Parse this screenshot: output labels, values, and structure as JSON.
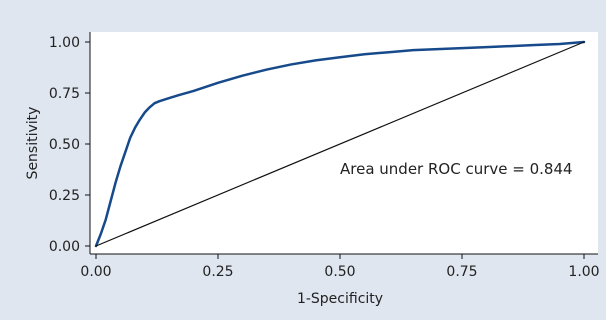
{
  "chart_data": {
    "type": "line",
    "title": "",
    "xlabel": "1-Specificity",
    "ylabel": "Sensitivity",
    "xlim": [
      0,
      1
    ],
    "ylim": [
      0,
      1
    ],
    "x_ticks": [
      0,
      0.25,
      0.5,
      0.75,
      1
    ],
    "y_ticks": [
      0,
      0.25,
      0.5,
      0.75,
      1
    ],
    "x_tick_labels": [
      "0.00",
      "0.25",
      "0.50",
      "0.75",
      "1.00"
    ],
    "y_tick_labels": [
      "0.00",
      "0.25",
      "0.50",
      "0.75",
      "1.00"
    ],
    "grid": false,
    "legend": "none",
    "annotation": "Area under ROC curve = 0.844",
    "series": [
      {
        "color": "#174a8b",
        "x": [
          0,
          0.01,
          0.02,
          0.03,
          0.04,
          0.05,
          0.06,
          0.07,
          0.08,
          0.09,
          0.1,
          0.11,
          0.12,
          0.13,
          0.15,
          0.17,
          0.2,
          0.25,
          0.3,
          0.35,
          0.4,
          0.45,
          0.5,
          0.55,
          0.6,
          0.65,
          0.7,
          0.75,
          0.8,
          0.85,
          0.9,
          0.95,
          1.0
        ],
        "y": [
          0,
          0.06,
          0.13,
          0.22,
          0.31,
          0.39,
          0.46,
          0.53,
          0.58,
          0.62,
          0.655,
          0.68,
          0.7,
          0.71,
          0.725,
          0.74,
          0.76,
          0.8,
          0.835,
          0.865,
          0.89,
          0.91,
          0.925,
          0.94,
          0.95,
          0.96,
          0.965,
          0.97,
          0.975,
          0.98,
          0.985,
          0.99,
          1.0
        ],
        "stroke_width": 2.5
      },
      {
        "color": "#111111",
        "x": [
          0,
          1
        ],
        "y": [
          0,
          1
        ],
        "stroke_width": 1.2
      }
    ]
  }
}
